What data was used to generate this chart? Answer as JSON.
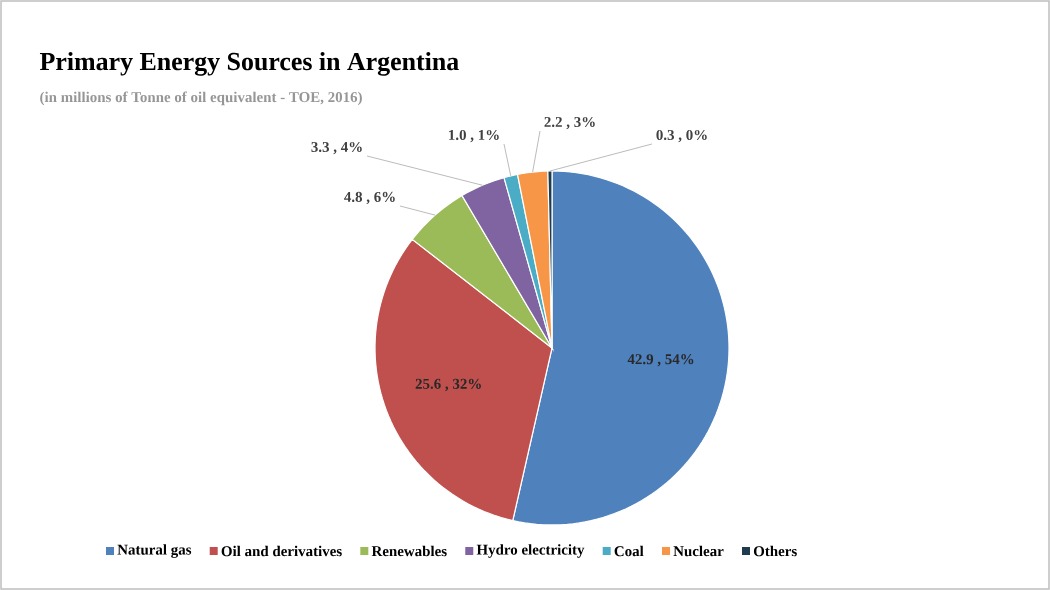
{
  "chart_data": {
    "type": "pie",
    "title": "Primary Energy Sources in Argentina",
    "subtitle": "(in millions of Tonne of oil equivalent - TOE, 2016)",
    "categories": [
      "Natural gas",
      "Oil and derivatives",
      "Renewables",
      "Hydro electricity",
      "Coal",
      "Nuclear",
      "Others"
    ],
    "values": [
      42.9,
      25.6,
      4.8,
      3.3,
      1.0,
      2.2,
      0.3
    ],
    "value_labels": [
      "42.9 , 54%",
      "25.6 , 32%",
      "4.8 , 6%",
      "3.3 , 4%",
      "1.0 , 1%",
      "2.2 , 3%",
      "0.3 , 0%"
    ],
    "colors": [
      "#4f81bd",
      "#c0504d",
      "#9bbb59",
      "#8064a2",
      "#4bacc6",
      "#f79646",
      "#1f3b4d"
    ],
    "legend": "bottom"
  }
}
